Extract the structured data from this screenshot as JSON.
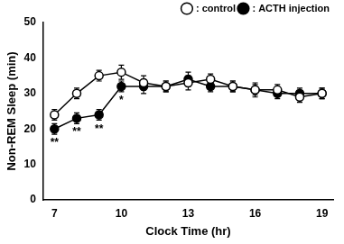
{
  "chart_data": {
    "type": "line",
    "x_label": "Clock Time (hr)",
    "y_label": "Non-REM Sleep (min)",
    "x": [
      7,
      8,
      9,
      10,
      11,
      12,
      13,
      14,
      15,
      16,
      17,
      18,
      19
    ],
    "series": [
      {
        "name": ": control",
        "color": "#000000",
        "marker": "open_circle",
        "values": [
          24,
          30,
          35,
          36,
          33,
          32,
          33,
          34,
          32,
          31,
          31,
          29,
          30
        ],
        "errors": [
          1.5,
          1.5,
          1.5,
          2,
          2,
          1.5,
          2,
          1.5,
          1.5,
          2,
          1.5,
          1.5,
          1.5
        ]
      },
      {
        "name": ": ACTH injection",
        "color": "#000000",
        "marker": "circle",
        "values": [
          20,
          23,
          24,
          32,
          32,
          32,
          34,
          32,
          32,
          31,
          30,
          30,
          30
        ],
        "errors": [
          1.5,
          1.5,
          1.5,
          1.5,
          2,
          1.5,
          2,
          1.5,
          1.5,
          1.5,
          1.5,
          1.5,
          1.5
        ]
      }
    ],
    "annotations": [
      {
        "x": 7,
        "y": 16,
        "text": "**"
      },
      {
        "x": 8,
        "y": 19,
        "text": "**"
      },
      {
        "x": 9,
        "y": 20,
        "text": "**"
      },
      {
        "x": 10,
        "y": 28,
        "text": "*"
      }
    ],
    "xlim": [
      6.5,
      19.5
    ],
    "xticks": [
      7,
      10,
      13,
      16,
      19
    ],
    "ylim": [
      0,
      50
    ],
    "yticks": [
      0,
      10,
      20,
      30,
      40,
      50
    ],
    "grid": false,
    "legend": "top-right"
  }
}
